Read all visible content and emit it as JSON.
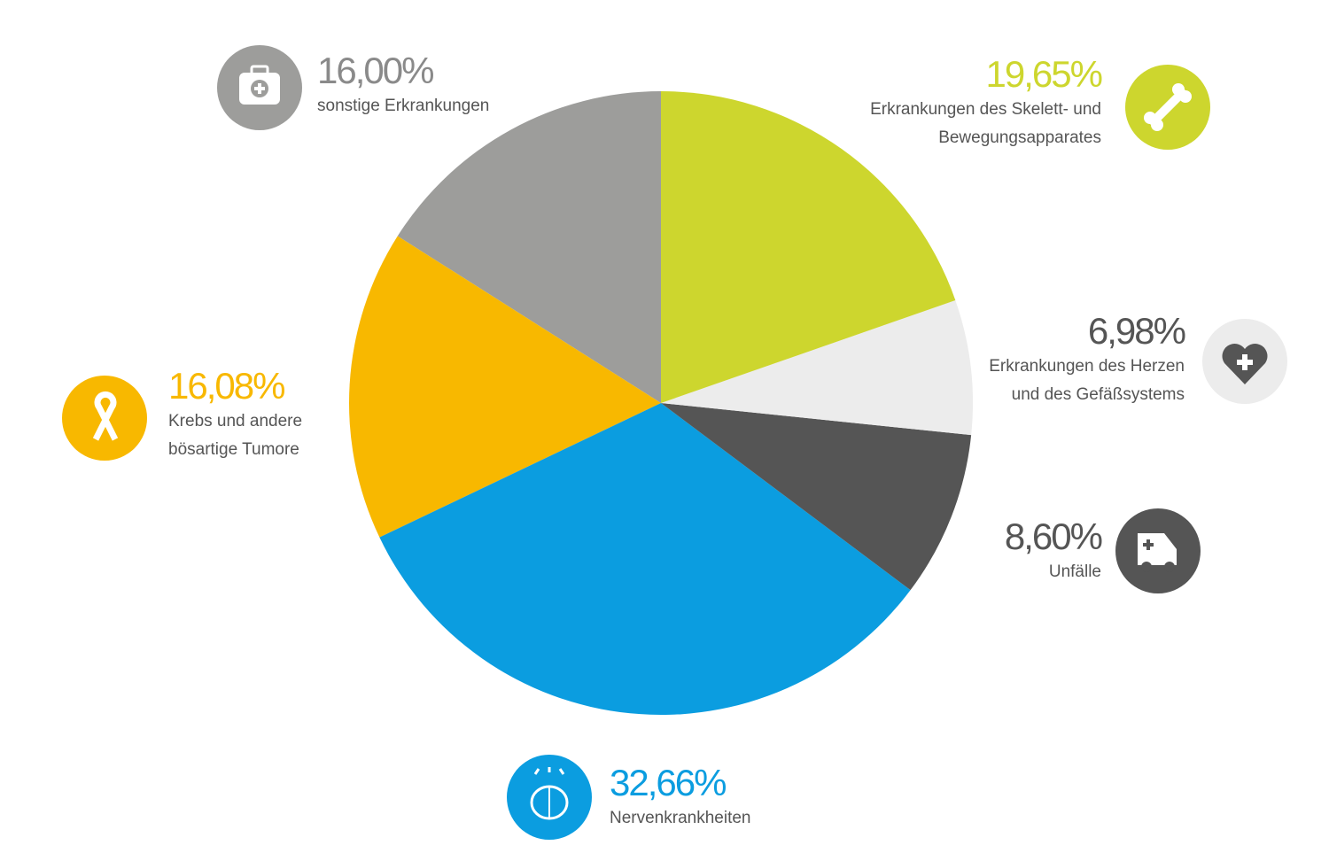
{
  "chart_data": {
    "type": "pie",
    "categories": [
      "Erkrankungen des Skelett- und Bewegungsapparates",
      "Erkrankungen des Herzen und des Gefäßsystems",
      "Unfälle",
      "Nervenkrankheiten",
      "Krebs und andere bösartige Tumore",
      "sonstige Erkrankungen"
    ],
    "values": [
      19.65,
      6.98,
      8.6,
      32.66,
      16.08,
      16.0
    ],
    "value_labels": [
      "19,65%",
      "6,98%",
      "8,60%",
      "32,66%",
      "16,08%",
      "16,00%"
    ],
    "colors": [
      "#cdd62e",
      "#ececec",
      "#555555",
      "#0b9de0",
      "#f8b800",
      "#9d9d9b"
    ],
    "value_label_colors": [
      "#cdd62e",
      "#555555",
      "#555555",
      "#0b9de0",
      "#f8b800",
      "#8a8a8a"
    ]
  }
}
